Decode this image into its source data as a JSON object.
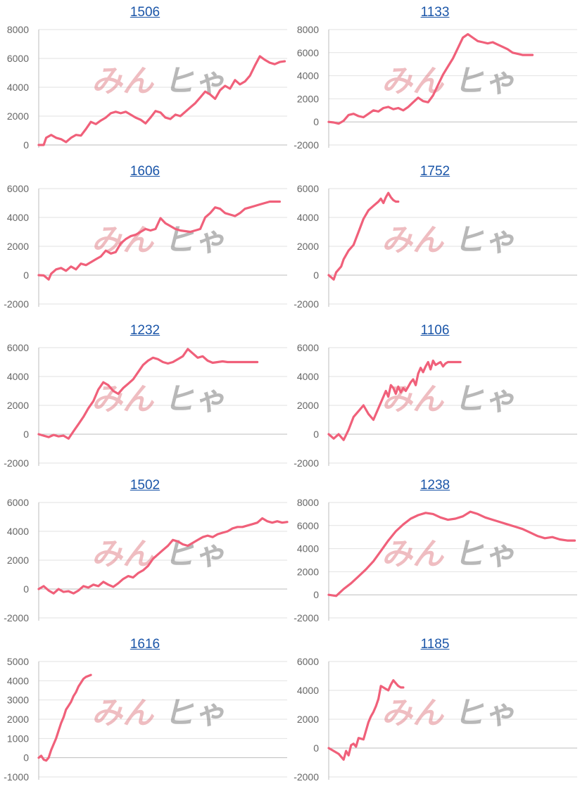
{
  "style": {
    "line_color": "#f0607a",
    "title_color": "#1a55a8",
    "grid_color": "#e2e2e2",
    "tick_color": "#666666"
  },
  "watermark": {
    "part1": "みん",
    "part2": "ヒゃ"
  },
  "chart_data": [
    {
      "type": "line",
      "title": "1506",
      "ylim": [
        0,
        8000
      ],
      "yticks": [
        0,
        2000,
        4000,
        6000,
        8000
      ],
      "xlim": [
        0,
        100
      ],
      "grid": true,
      "series": [
        {
          "x": [
            0,
            2,
            3,
            5,
            7,
            9,
            11,
            13,
            15,
            17,
            19,
            21,
            23,
            25,
            27,
            29,
            31,
            33,
            35,
            37,
            39,
            41,
            43,
            45,
            47,
            49,
            51,
            53,
            55,
            57,
            59,
            61,
            63,
            65,
            67,
            69,
            71,
            73,
            75,
            77,
            79,
            81,
            83,
            85,
            87,
            89,
            91,
            93,
            95,
            97,
            99
          ],
          "y": [
            0,
            0,
            500,
            700,
            500,
            400,
            200,
            500,
            700,
            650,
            1100,
            1600,
            1450,
            1700,
            1900,
            2200,
            2300,
            2200,
            2300,
            2100,
            1900,
            1750,
            1500,
            1900,
            2350,
            2250,
            1900,
            1800,
            2100,
            2000,
            2300,
            2600,
            2900,
            3300,
            3700,
            3500,
            3200,
            3800,
            4100,
            3900,
            4500,
            4200,
            4400,
            4800,
            5500,
            6150,
            5900,
            5700,
            5600,
            5750,
            5800
          ]
        }
      ]
    },
    {
      "type": "line",
      "title": "1133",
      "ylim": [
        -2000,
        8000
      ],
      "yticks": [
        -2000,
        0,
        2000,
        4000,
        6000,
        8000
      ],
      "xlim": [
        0,
        100
      ],
      "grid": true,
      "series": [
        {
          "x": [
            0,
            2,
            4,
            6,
            8,
            10,
            12,
            14,
            16,
            18,
            20,
            22,
            24,
            26,
            28,
            30,
            32,
            34,
            36,
            38,
            40,
            42,
            44,
            46,
            48,
            50,
            52,
            54,
            56,
            58,
            60,
            62,
            64,
            66,
            68,
            70,
            72,
            74,
            76,
            78,
            80,
            82
          ],
          "y": [
            0,
            -50,
            -150,
            100,
            600,
            700,
            500,
            400,
            700,
            1000,
            900,
            1200,
            1300,
            1100,
            1200,
            1000,
            1300,
            1700,
            2100,
            1800,
            1700,
            2300,
            3200,
            4100,
            4800,
            5500,
            6400,
            7300,
            7600,
            7300,
            7000,
            6900,
            6800,
            6900,
            6700,
            6500,
            6300,
            6000,
            5900,
            5800,
            5800,
            5800
          ]
        }
      ]
    },
    {
      "type": "line",
      "title": "1606",
      "ylim": [
        -2000,
        6000
      ],
      "yticks": [
        -2000,
        0,
        2000,
        4000,
        6000
      ],
      "xlim": [
        0,
        100
      ],
      "grid": true,
      "series": [
        {
          "x": [
            0,
            2,
            4,
            5,
            7,
            9,
            11,
            13,
            15,
            17,
            19,
            21,
            23,
            25,
            27,
            29,
            31,
            33,
            35,
            37,
            39,
            41,
            43,
            45,
            47,
            49,
            51,
            53,
            55,
            57,
            59,
            61,
            63,
            65,
            67,
            69,
            71,
            73,
            75,
            77,
            79,
            81,
            83,
            85,
            87,
            89,
            91,
            93,
            95,
            97
          ],
          "y": [
            0,
            -20,
            -300,
            100,
            400,
            500,
            300,
            600,
            400,
            800,
            700,
            900,
            1100,
            1300,
            1700,
            1500,
            1600,
            2200,
            2500,
            2700,
            2800,
            3000,
            3200,
            3100,
            3200,
            3950,
            3600,
            3400,
            3200,
            3100,
            3050,
            3000,
            3100,
            3200,
            4000,
            4300,
            4700,
            4600,
            4300,
            4200,
            4100,
            4300,
            4600,
            4700,
            4800,
            4900,
            5000,
            5100,
            5100,
            5100
          ]
        }
      ]
    },
    {
      "type": "line",
      "title": "1752",
      "ylim": [
        -2000,
        6000
      ],
      "yticks": [
        -2000,
        0,
        2000,
        4000,
        6000
      ],
      "xlim": [
        0,
        100
      ],
      "grid": true,
      "series": [
        {
          "x": [
            0,
            2,
            3,
            5,
            6,
            8,
            10,
            12,
            14,
            16,
            18,
            20,
            21,
            22,
            23,
            24,
            25,
            26,
            27,
            28
          ],
          "y": [
            0,
            -300,
            200,
            600,
            1100,
            1700,
            2100,
            3000,
            3900,
            4500,
            4800,
            5100,
            5300,
            5000,
            5400,
            5700,
            5400,
            5200,
            5100,
            5100
          ]
        }
      ]
    },
    {
      "type": "line",
      "title": "1232",
      "ylim": [
        -2000,
        6000
      ],
      "yticks": [
        -2000,
        0,
        2000,
        4000,
        6000
      ],
      "xlim": [
        0,
        100
      ],
      "grid": true,
      "series": [
        {
          "x": [
            0,
            2,
            4,
            6,
            8,
            10,
            12,
            14,
            16,
            18,
            20,
            22,
            24,
            26,
            28,
            30,
            32,
            34,
            36,
            38,
            40,
            42,
            44,
            46,
            48,
            50,
            52,
            54,
            56,
            58,
            60,
            62,
            64,
            66,
            68,
            70,
            72,
            74,
            76,
            78,
            80,
            82,
            84,
            86,
            88
          ],
          "y": [
            0,
            -100,
            -200,
            -50,
            -150,
            -100,
            -300,
            200,
            700,
            1200,
            1800,
            2300,
            3100,
            3600,
            3400,
            3000,
            2800,
            3200,
            3500,
            3800,
            4300,
            4800,
            5100,
            5300,
            5200,
            5000,
            4900,
            5000,
            5200,
            5400,
            5900,
            5600,
            5300,
            5400,
            5100,
            4950,
            5000,
            5050,
            5000,
            5000,
            5000,
            5000,
            5000,
            5000,
            5000
          ]
        }
      ]
    },
    {
      "type": "line",
      "title": "1106",
      "ylim": [
        -2000,
        6000
      ],
      "yticks": [
        -2000,
        0,
        2000,
        4000,
        6000
      ],
      "xlim": [
        0,
        100
      ],
      "grid": true,
      "series": [
        {
          "x": [
            0,
            2,
            4,
            6,
            8,
            10,
            12,
            14,
            16,
            18,
            20,
            22,
            23,
            24,
            25,
            26,
            27,
            28,
            29,
            30,
            31,
            32,
            33,
            34,
            35,
            36,
            37,
            38,
            39,
            40,
            41,
            42,
            43,
            44,
            45,
            46,
            47,
            48,
            49,
            50,
            51,
            52,
            53
          ],
          "y": [
            0,
            -300,
            0,
            -400,
            300,
            1200,
            1600,
            2000,
            1400,
            1000,
            1800,
            2600,
            3000,
            2600,
            3400,
            3200,
            2800,
            3300,
            2900,
            3200,
            3000,
            3300,
            3600,
            3800,
            3400,
            4200,
            4600,
            4300,
            4700,
            5000,
            4500,
            5100,
            4800,
            4900,
            5000,
            4700,
            4900,
            5000,
            5000,
            5000,
            5000,
            5000,
            5000
          ]
        }
      ]
    },
    {
      "type": "line",
      "title": "1502",
      "ylim": [
        -2000,
        6000
      ],
      "yticks": [
        -2000,
        0,
        2000,
        4000,
        6000
      ],
      "xlim": [
        0,
        100
      ],
      "grid": true,
      "series": [
        {
          "x": [
            0,
            2,
            4,
            6,
            8,
            10,
            12,
            14,
            16,
            18,
            20,
            22,
            24,
            26,
            28,
            30,
            32,
            34,
            36,
            38,
            40,
            42,
            44,
            46,
            48,
            50,
            52,
            54,
            56,
            58,
            60,
            62,
            64,
            66,
            68,
            70,
            72,
            74,
            76,
            78,
            80,
            82,
            84,
            86,
            88,
            90,
            92,
            94,
            96,
            98,
            100
          ],
          "y": [
            0,
            200,
            -100,
            -300,
            0,
            -200,
            -150,
            -300,
            -100,
            200,
            100,
            300,
            200,
            500,
            300,
            150,
            400,
            700,
            900,
            800,
            1100,
            1300,
            1600,
            2100,
            2400,
            2700,
            3000,
            3400,
            3300,
            3100,
            3000,
            3200,
            3400,
            3600,
            3700,
            3600,
            3800,
            3900,
            4000,
            4200,
            4300,
            4300,
            4400,
            4500,
            4600,
            4900,
            4700,
            4600,
            4700,
            4600,
            4650
          ]
        }
      ]
    },
    {
      "type": "line",
      "title": "1238",
      "ylim": [
        -2000,
        8000
      ],
      "yticks": [
        -2000,
        0,
        2000,
        4000,
        6000,
        8000
      ],
      "xlim": [
        0,
        100
      ],
      "grid": true,
      "series": [
        {
          "x": [
            0,
            3,
            6,
            9,
            12,
            15,
            18,
            21,
            24,
            27,
            30,
            33,
            36,
            39,
            42,
            45,
            48,
            51,
            54,
            57,
            60,
            63,
            66,
            69,
            72,
            75,
            78,
            81,
            84,
            87,
            90,
            93,
            96,
            99
          ],
          "y": [
            0,
            -100,
            500,
            1000,
            1600,
            2200,
            2900,
            3800,
            4700,
            5500,
            6100,
            6600,
            6900,
            7100,
            7000,
            6700,
            6500,
            6600,
            6800,
            7200,
            7000,
            6700,
            6500,
            6300,
            6100,
            5900,
            5700,
            5400,
            5100,
            4900,
            5000,
            4800,
            4700,
            4700
          ]
        }
      ]
    },
    {
      "type": "line",
      "title": "1616",
      "ylim": [
        -1000,
        5000
      ],
      "yticks": [
        -1000,
        0,
        1000,
        2000,
        3000,
        4000,
        5000
      ],
      "xlim": [
        0,
        100
      ],
      "grid": true,
      "series": [
        {
          "x": [
            0,
            1,
            2,
            3,
            4,
            5,
            6,
            7,
            8,
            9,
            10,
            11,
            12,
            13,
            14,
            15,
            16,
            17,
            18,
            19,
            20,
            21
          ],
          "y": [
            0,
            100,
            -100,
            -150,
            0,
            400,
            700,
            1000,
            1400,
            1800,
            2100,
            2500,
            2700,
            2900,
            3200,
            3400,
            3700,
            3900,
            4100,
            4200,
            4250,
            4300
          ]
        }
      ]
    },
    {
      "type": "line",
      "title": "1185",
      "ylim": [
        -2000,
        6000
      ],
      "yticks": [
        -2000,
        0,
        2000,
        4000,
        6000
      ],
      "xlim": [
        0,
        100
      ],
      "grid": true,
      "series": [
        {
          "x": [
            0,
            2,
            4,
            6,
            7,
            8,
            9,
            10,
            11,
            12,
            14,
            15,
            16,
            17,
            18,
            19,
            20,
            21,
            22,
            23,
            24,
            25,
            26,
            27,
            28,
            29,
            30
          ],
          "y": [
            0,
            -200,
            -400,
            -800,
            -200,
            -500,
            200,
            300,
            100,
            700,
            600,
            1200,
            1800,
            2200,
            2500,
            2900,
            3400,
            4300,
            4200,
            4100,
            4000,
            4400,
            4700,
            4500,
            4300,
            4200,
            4200
          ]
        }
      ]
    }
  ]
}
